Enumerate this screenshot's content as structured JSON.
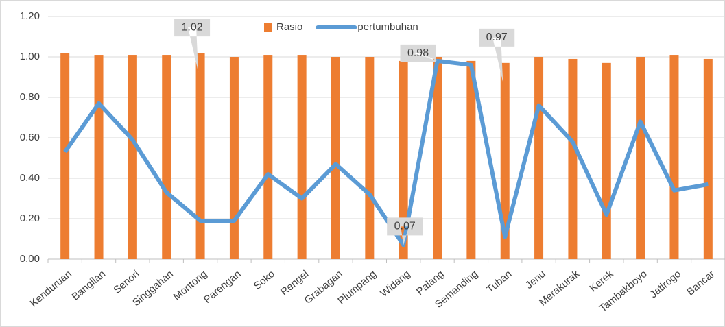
{
  "chart_data": {
    "type": "bar-line",
    "categories": [
      "Kenduruan",
      "Bangilan",
      "Senori",
      "Singgahan",
      "Montong",
      "Parengan",
      "Soko",
      "Rengel",
      "Grabagan",
      "Plumpang",
      "Widang",
      "Palang",
      "Semanding",
      "Tuban",
      "Jenu",
      "Merakurak",
      "Kerek",
      "Tambakboyo",
      "Jatirogo",
      "Bancar"
    ],
    "series": [
      {
        "name": "Rasio",
        "type": "bar",
        "color": "#ed7d31",
        "values": [
          1.02,
          1.01,
          1.01,
          1.01,
          1.02,
          1.0,
          1.01,
          1.01,
          1.0,
          1.0,
          0.98,
          1.0,
          0.98,
          0.97,
          1.0,
          0.99,
          0.97,
          1.0,
          1.01,
          0.99
        ],
        "value_labels": [
          null,
          null,
          null,
          null,
          "1.02",
          null,
          null,
          null,
          null,
          null,
          null,
          null,
          null,
          "0.97",
          null,
          null,
          null,
          null,
          null,
          null
        ]
      },
      {
        "name": "pertumbuhan",
        "type": "line",
        "color": "#5b9bd5",
        "values": [
          0.53,
          0.77,
          0.59,
          0.33,
          0.19,
          0.19,
          0.42,
          0.3,
          0.47,
          0.32,
          0.07,
          0.98,
          0.96,
          0.11,
          0.76,
          0.58,
          0.22,
          0.68,
          0.34,
          0.37
        ],
        "value_labels": [
          null,
          null,
          null,
          null,
          null,
          null,
          null,
          null,
          null,
          null,
          "0.07",
          "0.98",
          null,
          null,
          null,
          null,
          null,
          null,
          null,
          null
        ]
      }
    ],
    "ylim": [
      0,
      1.2
    ],
    "yticks": [
      {
        "value": 0,
        "label": "0.00"
      },
      {
        "value": 0.2,
        "label": "0.20"
      },
      {
        "value": 0.4,
        "label": "0.40"
      },
      {
        "value": 0.6,
        "label": "0.60"
      },
      {
        "value": 0.8,
        "label": "0.80"
      },
      {
        "value": 1.0,
        "label": "1.00"
      },
      {
        "value": 1.2,
        "label": "1.20"
      }
    ],
    "grid": true,
    "legend": "top"
  }
}
